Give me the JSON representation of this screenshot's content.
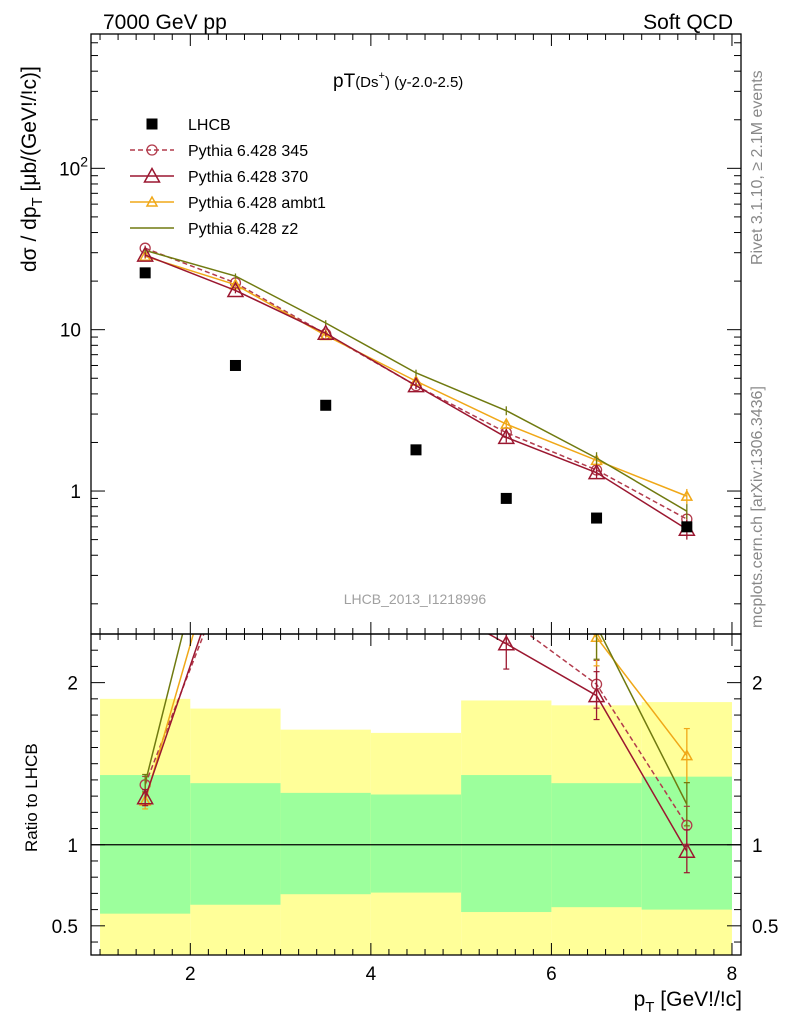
{
  "header": {
    "left": "7000 GeV pp",
    "right": "Soft QCD"
  },
  "side_labels": {
    "rivet": "Rivet 3.1.10, ≥ 2.1M events",
    "mcplots": "mcplots.cern.ch [arXiv:1306.3436]"
  },
  "analysis_id": "LHCB_2013_I1218996",
  "plot_title": {
    "main": "pT",
    "sub": "(Ds",
    "sup": "+",
    "tail": ") (y-2.0-2.5)"
  },
  "axes": {
    "main_ylabel": "dσ / dp",
    "main_ylabel_sub": "T",
    "main_ylabel_tail": " [μb/(GeV!/!c)]",
    "ratio_ylabel": "Ratio to LHCB",
    "xlabel": "p",
    "xlabel_sub": "T",
    "xlabel_tail": " [GeV!/!c]"
  },
  "colors": {
    "lhcb": "#000000",
    "p345": "#b23b4c",
    "p370": "#9b1730",
    "ambt1": "#f0a818",
    "z2": "#707a10",
    "band_inner": "#9cff9c",
    "band_outer": "#ffff99"
  },
  "chart_data": {
    "type": "scatter",
    "x_range": [
      0.9,
      8.1
    ],
    "main": {
      "yscale": "log",
      "ylim": [
        0.13,
        680
      ],
      "yticks": [
        {
          "v": 1,
          "label": "1"
        },
        {
          "v": 10,
          "label": "10"
        },
        {
          "v": 100,
          "label": "10",
          "sup": "2"
        }
      ]
    },
    "ratio": {
      "ylim": [
        0.32,
        2.3
      ],
      "yticks": [
        {
          "v": 0.5,
          "label": "0.5"
        },
        {
          "v": 1,
          "label": "1"
        },
        {
          "v": 2,
          "label": "2"
        }
      ],
      "reference_line": 1
    },
    "xticks": [
      {
        "v": 2,
        "label": "2"
      },
      {
        "v": 4,
        "label": "4"
      },
      {
        "v": 6,
        "label": "6"
      },
      {
        "v": 8,
        "label": "8"
      }
    ],
    "bins": [
      {
        "lo": 1,
        "hi": 2,
        "inner": [
          0.575,
          1.43
        ],
        "outer": [
          0.32,
          1.9
        ]
      },
      {
        "lo": 2,
        "hi": 3,
        "inner": [
          0.63,
          1.38
        ],
        "outer": [
          0.32,
          1.84
        ]
      },
      {
        "lo": 3,
        "hi": 4,
        "inner": [
          0.695,
          1.32
        ],
        "outer": [
          0.32,
          1.71
        ]
      },
      {
        "lo": 4,
        "hi": 5,
        "inner": [
          0.705,
          1.31
        ],
        "outer": [
          0.32,
          1.69
        ]
      },
      {
        "lo": 5,
        "hi": 6,
        "inner": [
          0.585,
          1.43
        ],
        "outer": [
          0.32,
          1.89
        ]
      },
      {
        "lo": 6,
        "hi": 7,
        "inner": [
          0.615,
          1.38
        ],
        "outer": [
          0.32,
          1.86
        ]
      },
      {
        "lo": 7,
        "hi": 8,
        "inner": [
          0.6,
          1.42
        ],
        "outer": [
          0.32,
          1.88
        ]
      }
    ],
    "x": [
      1.5,
      2.5,
      3.5,
      4.5,
      5.5,
      6.5,
      7.5
    ],
    "data": {
      "name": "LHCB",
      "y": [
        22.5,
        6.0,
        3.4,
        1.8,
        0.9,
        0.68,
        0.6
      ]
    },
    "series": [
      {
        "name": "Pythia 6.428 345",
        "key": "p345",
        "marker": "circle",
        "dash": true,
        "y": [
          32,
          19.5,
          9.4,
          4.5,
          2.3,
          1.35,
          0.67
        ],
        "err": [
          1.2,
          0.7,
          0.4,
          0.22,
          0.15,
          0.1,
          0.07
        ],
        "ratio": [
          1.37,
          2.8,
          2.73,
          2.65,
          2.4,
          1.99,
          1.12
        ]
      },
      {
        "name": "Pythia 6.428 370",
        "key": "p370",
        "marker": "triangle",
        "dash": false,
        "y": [
          29,
          17.5,
          9.5,
          4.5,
          2.15,
          1.3,
          0.58
        ],
        "err": [
          1.1,
          0.7,
          0.4,
          0.2,
          0.15,
          0.1,
          0.08
        ],
        "ratio": [
          1.29,
          2.92,
          2.79,
          2.55,
          2.24,
          1.92,
          0.96
        ]
      },
      {
        "name": "Pythia 6.428 ambt1",
        "key": "ambt1",
        "marker": "triangle-small",
        "dash": false,
        "y": [
          28.5,
          19,
          9.2,
          4.8,
          2.6,
          1.55,
          0.93
        ],
        "err": [
          1.1,
          0.7,
          0.4,
          0.22,
          0.16,
          0.12,
          0.1
        ],
        "ratio": [
          1.27,
          3.2,
          2.71,
          2.67,
          2.89,
          2.28,
          1.55
        ]
      },
      {
        "name": "Pythia 6.428 z2",
        "key": "z2",
        "marker": "none",
        "dash": false,
        "y": [
          31,
          21.5,
          11,
          5.4,
          3.15,
          1.6,
          0.75
        ],
        "err": [
          1.2,
          0.8,
          0.45,
          0.25,
          0.2,
          0.14,
          0.08
        ],
        "ratio": [
          1.38,
          3.6,
          3.25,
          3.0,
          3.5,
          2.35,
          1.25
        ]
      }
    ]
  }
}
